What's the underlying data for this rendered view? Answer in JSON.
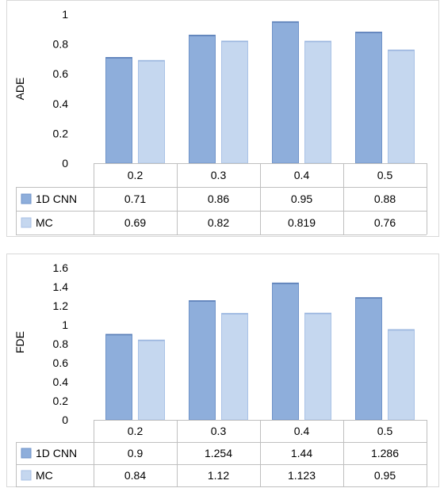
{
  "chart_data": [
    {
      "type": "bar",
      "ylabel": "ADE",
      "xlabel": "",
      "title": "",
      "ylim": [
        0,
        1
      ],
      "yticks": [
        "0",
        "0.2",
        "0.4",
        "0.6",
        "0.8",
        "1"
      ],
      "ytick_values": [
        0,
        0.2,
        0.4,
        0.6,
        0.8,
        1
      ],
      "categories": [
        "0.2",
        "0.3",
        "0.4",
        "0.5"
      ],
      "series": [
        {
          "name": "1D CNN",
          "color": "#8eaedb",
          "values": [
            0.71,
            0.86,
            0.95,
            0.88
          ],
          "labels": [
            "0.71",
            "0.86",
            "0.95",
            "0.88"
          ]
        },
        {
          "name": "MC",
          "color": "#c5d7ef",
          "values": [
            0.69,
            0.82,
            0.819,
            0.76
          ],
          "labels": [
            "0.69",
            "0.82",
            "0.819",
            "0.76"
          ]
        }
      ],
      "legend": "data-table",
      "grid": false
    },
    {
      "type": "bar",
      "ylabel": "FDE",
      "xlabel": "",
      "title": "",
      "ylim": [
        0,
        1.6
      ],
      "yticks": [
        "0",
        "0.2",
        "0.4",
        "0.6",
        "0.8",
        "1",
        "1.2",
        "1.4",
        "1.6"
      ],
      "ytick_values": [
        0,
        0.2,
        0.4,
        0.6,
        0.8,
        1,
        1.2,
        1.4,
        1.6
      ],
      "categories": [
        "0.2",
        "0.3",
        "0.4",
        "0.5"
      ],
      "series": [
        {
          "name": "1D CNN",
          "color": "#8eaedb",
          "values": [
            0.9,
            1.254,
            1.44,
            1.286
          ],
          "labels": [
            "0.9",
            "1.254",
            "1.44",
            "1.286"
          ]
        },
        {
          "name": "MC",
          "color": "#c5d7ef",
          "values": [
            0.84,
            1.12,
            1.123,
            0.95
          ],
          "labels": [
            "0.84",
            "1.12",
            "1.123",
            "0.95"
          ]
        }
      ],
      "legend": "data-table",
      "grid": false
    }
  ]
}
